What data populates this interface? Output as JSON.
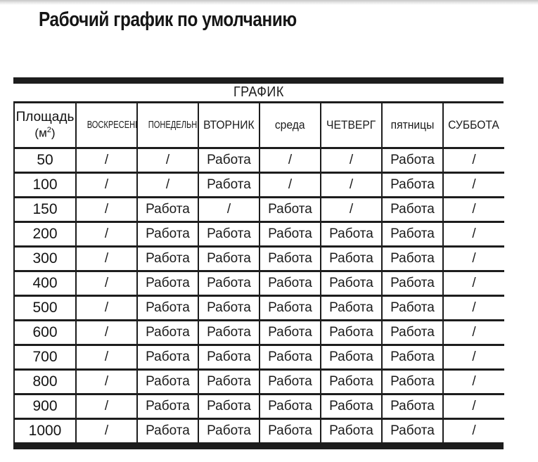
{
  "page": {
    "title": "Рабочий график по умолчанию"
  },
  "colors": {
    "border": "#1d1d1d",
    "text": "#111111",
    "background": "#ffffff"
  },
  "table": {
    "caption": "ГРАФИК",
    "area_header": {
      "line1": "Площадь",
      "unit": "(м",
      "unit_sup": "2",
      "unit_close": ")"
    },
    "day_headers": [
      "ВОСКРЕСЕНИЕ",
      "ПОНЕДЕЛЬНИК",
      "ВТОРНИК",
      "среда",
      "ЧЕТВЕРГ",
      "пятницы",
      "СУББОТА"
    ],
    "work_label": "Работа",
    "off_label": "/",
    "rows": [
      {
        "area": "50",
        "days": [
          "/",
          "/",
          "Работа",
          "/",
          "/",
          "Работа",
          "/"
        ]
      },
      {
        "area": "100",
        "days": [
          "/",
          "/",
          "Работа",
          "/",
          "/",
          "Работа",
          "/"
        ]
      },
      {
        "area": "150",
        "days": [
          "/",
          "Работа",
          "/",
          "Работа",
          "/",
          "Работа",
          "/"
        ]
      },
      {
        "area": "200",
        "days": [
          "/",
          "Работа",
          "Работа",
          "Работа",
          "Работа",
          "Работа",
          "/"
        ]
      },
      {
        "area": "300",
        "days": [
          "/",
          "Работа",
          "Работа",
          "Работа",
          "Работа",
          "Работа",
          "/"
        ]
      },
      {
        "area": "400",
        "days": [
          "/",
          "Работа",
          "Работа",
          "Работа",
          "Работа",
          "Работа",
          "/"
        ]
      },
      {
        "area": "500",
        "days": [
          "/",
          "Работа",
          "Работа",
          "Работа",
          "Работа",
          "Работа",
          "/"
        ]
      },
      {
        "area": "600",
        "days": [
          "/",
          "Работа",
          "Работа",
          "Работа",
          "Работа",
          "Работа",
          "/"
        ]
      },
      {
        "area": "700",
        "days": [
          "/",
          "Работа",
          "Работа",
          "Работа",
          "Работа",
          "Работа",
          "/"
        ]
      },
      {
        "area": "800",
        "days": [
          "/",
          "Работа",
          "Работа",
          "Работа",
          "Работа",
          "Работа",
          "/"
        ]
      },
      {
        "area": "900",
        "days": [
          "/",
          "Работа",
          "Работа",
          "Работа",
          "Работа",
          "Работа",
          "/"
        ]
      },
      {
        "area": "1000",
        "days": [
          "/",
          "Работа",
          "Работа",
          "Работа",
          "Работа",
          "Работа",
          "/"
        ]
      }
    ]
  }
}
